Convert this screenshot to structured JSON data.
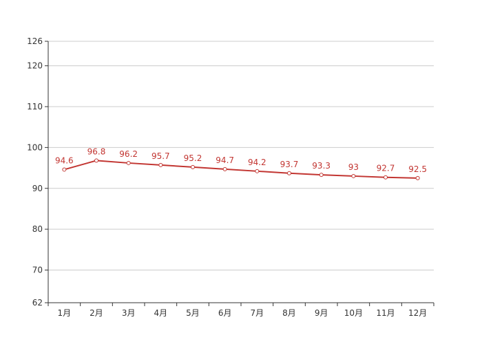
{
  "chart_data": {
    "type": "line",
    "categories": [
      "1月",
      "2月",
      "3月",
      "4月",
      "5月",
      "6月",
      "7月",
      "8月",
      "9月",
      "10月",
      "11月",
      "12月"
    ],
    "series": [
      {
        "values": [
          94.6,
          96.8,
          96.2,
          95.7,
          95.2,
          94.7,
          94.2,
          93.7,
          93.3,
          93,
          92.7,
          92.5
        ],
        "color": "#c23531"
      }
    ],
    "ylim": [
      62,
      126
    ],
    "yticks": [
      62,
      70,
      80,
      90,
      100,
      110,
      120,
      126
    ],
    "grid": true,
    "data_labels": true,
    "title": "",
    "xlabel": "",
    "ylabel": ""
  }
}
